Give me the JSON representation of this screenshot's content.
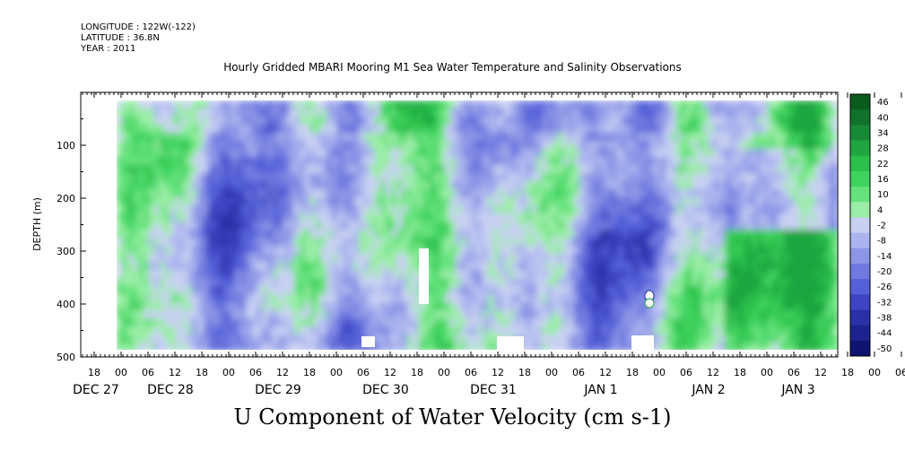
{
  "header": {
    "longitude": "LONGITUDE : 122W(-122)",
    "latitude": "LATITUDE : 36.8N",
    "year": "YEAR : 2011",
    "title": "Hourly Gridded MBARI Mooring M1 Sea Water Temperature and Salinity Observations"
  },
  "chart_data": {
    "type": "heatmap",
    "title": "Hourly Gridded MBARI Mooring M1 Sea Water Temperature and Salinity Observations",
    "xlabel": "",
    "ylabel": "DEPTH (m)",
    "variable_label": "U Component of Water Velocity (cm s-1)",
    "y_axis": {
      "range": [
        0,
        500
      ],
      "ticks": [
        100,
        200,
        300,
        400,
        500
      ],
      "inverted": true
    },
    "x_axis": {
      "hour_ticks": [
        "18",
        "00",
        "06",
        "12",
        "18",
        "00",
        "06",
        "12",
        "18",
        "00",
        "06",
        "12",
        "18",
        "00",
        "06",
        "12",
        "18",
        "00",
        "06",
        "12",
        "18",
        "00",
        "06",
        "12",
        "18",
        "00",
        "06",
        "12",
        "18",
        "00",
        "06",
        "12"
      ],
      "date_labels": [
        "DEC 27",
        "DEC 28",
        "DEC 29",
        "DEC 30",
        "DEC 31",
        "JAN 1",
        "JAN 2",
        "JAN 3"
      ]
    },
    "colorbar": {
      "levels": [
        "46",
        "40",
        "34",
        "28",
        "22",
        "16",
        "10",
        "4",
        "-2",
        "-8",
        "-14",
        "-20",
        "-26",
        "-32",
        "-38",
        "-44",
        "-50"
      ],
      "colors": [
        "#0b5a1e",
        "#10722a",
        "#178a35",
        "#1fa640",
        "#2bc04c",
        "#3fd35e",
        "#65e27b",
        "#9aeda6",
        "#c8d0f2",
        "#aab4ee",
        "#8c96e6",
        "#6f7ae0",
        "#5560d8",
        "#3d45c4",
        "#2a31a8",
        "#1c2290",
        "#0f1370"
      ]
    }
  }
}
